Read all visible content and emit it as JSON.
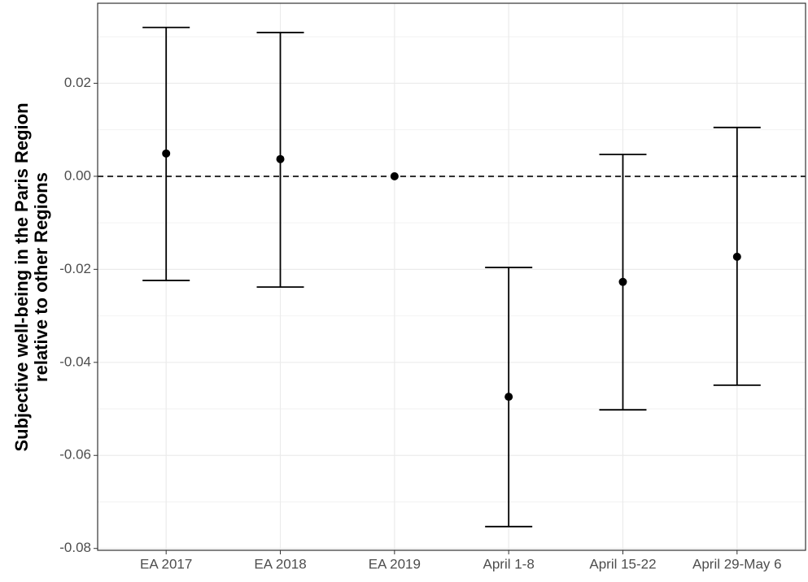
{
  "chart_data": {
    "type": "errorbar",
    "y_label": [
      "Subjective well-being in the Paris Region",
      "relative to other Regions"
    ],
    "categories": [
      "EA 2017",
      "EA 2018",
      "EA 2019",
      "April 1-8",
      "April 15-22",
      "April 29-May 6"
    ],
    "values": [
      0.0049,
      0.0037,
      0,
      -0.0474,
      -0.0227,
      -0.0173
    ],
    "lower": [
      -0.0224,
      -0.0238,
      null,
      -0.0753,
      -0.0502,
      -0.0449
    ],
    "upper": [
      0.032,
      0.0309,
      null,
      -0.0196,
      0.0047,
      0.0105
    ],
    "color": "#000000",
    "ylim": [
      -0.0804,
      0.0372
    ],
    "yticks": [
      0.02,
      {
        "value": 0,
        "label": "0.00"
      },
      -0.02,
      -0.04,
      -0.06,
      -0.08
    ],
    "minor_yticks": [
      0.03,
      0.01,
      -0.01,
      -0.03,
      -0.05,
      -0.07
    ],
    "hline": 0,
    "grid": true
  }
}
